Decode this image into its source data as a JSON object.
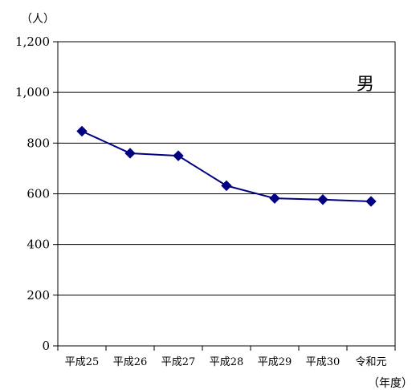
{
  "chart_data": {
    "type": "line",
    "ylabel": "（人）",
    "xlabel": "（年度）",
    "categories": [
      "平成25",
      "平成26",
      "平成27",
      "平成28",
      "平成29",
      "平成30",
      "令和元"
    ],
    "series": [
      {
        "name": "男",
        "values": [
          847,
          760,
          750,
          632,
          582,
          577,
          570
        ],
        "color": "#000080"
      }
    ],
    "ylim": [
      0,
      1200
    ],
    "yticks": [
      0,
      200,
      400,
      600,
      800,
      1000,
      1200
    ],
    "ytick_labels": [
      "0",
      "200",
      "400",
      "600",
      "800",
      "1,000",
      "1,200"
    ],
    "grid": true,
    "gridline_color": "#000000"
  }
}
